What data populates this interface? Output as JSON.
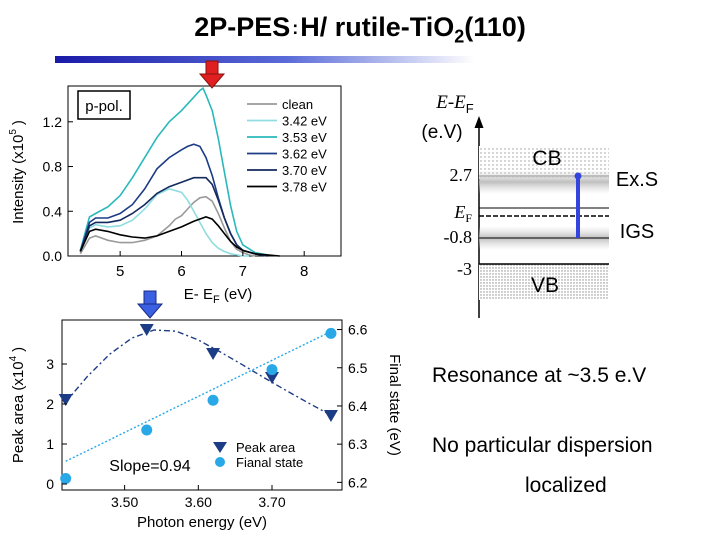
{
  "slide": {
    "title_main": "2P-PES",
    "title_mid": "H/ rutile-TiO",
    "title_sub": "2",
    "title_end": "(110)"
  },
  "colors": {
    "title_bar_dark": "#1a1aa8",
    "title_bar_light": "#5a6bd8",
    "arrow": "#e02020",
    "arrow_blue": "#3a5fe0",
    "cbm_line": "#3344dd"
  },
  "chart_data": [
    {
      "type": "line",
      "panel_label": "p-pol.",
      "xlabel": "E- E",
      "xlabel_sub": "F",
      "xlabel_unit": " (eV)",
      "ylabel": "Intensity (x10",
      "ylabel_sup": "5",
      "ylabel_end": ")",
      "xlim": [
        4.15,
        8.6
      ],
      "ylim": [
        0.0,
        1.52
      ],
      "xticks": [
        5,
        6,
        7,
        8
      ],
      "xtick_labels": [
        "5",
        "6",
        "7",
        "8"
      ],
      "yticks": [
        0.0,
        0.4,
        0.8,
        1.2
      ],
      "ytick_labels": [
        "0.0",
        "0.4",
        "0.8",
        "1.2"
      ],
      "legend_position": "top-right",
      "series": [
        {
          "name": "clean",
          "color": "#9a9a9a",
          "x": [
            4.35,
            4.5,
            4.6,
            4.8,
            5.0,
            5.2,
            5.4,
            5.6,
            5.8,
            5.9,
            6.0,
            6.1,
            6.2,
            6.3,
            6.4,
            6.5,
            6.6,
            6.7,
            6.8,
            6.9,
            7.0,
            7.1,
            7.2
          ],
          "y": [
            0.02,
            0.16,
            0.18,
            0.14,
            0.12,
            0.12,
            0.14,
            0.18,
            0.27,
            0.33,
            0.36,
            0.42,
            0.48,
            0.52,
            0.53,
            0.49,
            0.38,
            0.25,
            0.13,
            0.06,
            0.03,
            0.01,
            0.0
          ]
        },
        {
          "name": "3.42 eV",
          "color": "#8fdde0",
          "x": [
            4.35,
            4.5,
            4.6,
            4.8,
            5.0,
            5.2,
            5.4,
            5.6,
            5.8,
            6.0,
            6.1,
            6.2,
            6.3,
            6.4,
            6.5,
            6.6,
            6.7,
            6.8,
            6.9,
            7.0,
            7.1
          ],
          "y": [
            0.05,
            0.25,
            0.28,
            0.26,
            0.27,
            0.32,
            0.42,
            0.55,
            0.6,
            0.57,
            0.5,
            0.4,
            0.3,
            0.2,
            0.12,
            0.07,
            0.04,
            0.02,
            0.01,
            0.0,
            0.0
          ]
        },
        {
          "name": "3.53 eV",
          "color": "#2ab8ba",
          "x": [
            4.35,
            4.5,
            4.6,
            4.8,
            5.0,
            5.2,
            5.4,
            5.6,
            5.8,
            6.0,
            6.1,
            6.2,
            6.3,
            6.35,
            6.4,
            6.5,
            6.6,
            6.7,
            6.8,
            6.9,
            7.0,
            7.2,
            7.4
          ],
          "y": [
            0.05,
            0.35,
            0.38,
            0.44,
            0.54,
            0.7,
            0.88,
            1.06,
            1.2,
            1.3,
            1.36,
            1.42,
            1.48,
            1.5,
            1.44,
            1.3,
            1.05,
            0.75,
            0.45,
            0.22,
            0.1,
            0.03,
            0.01
          ]
        },
        {
          "name": "3.62 eV",
          "color": "#1d3c86",
          "x": [
            4.35,
            4.5,
            4.6,
            4.8,
            5.0,
            5.2,
            5.4,
            5.6,
            5.8,
            6.0,
            6.1,
            6.2,
            6.3,
            6.4,
            6.5,
            6.6,
            6.7,
            6.8,
            6.9,
            7.0,
            7.2,
            7.4
          ],
          "y": [
            0.04,
            0.3,
            0.34,
            0.34,
            0.38,
            0.46,
            0.6,
            0.78,
            0.88,
            0.95,
            0.98,
            1.0,
            0.98,
            0.88,
            0.72,
            0.52,
            0.34,
            0.2,
            0.1,
            0.05,
            0.02,
            0.0
          ]
        },
        {
          "name": "3.70 eV",
          "color": "#142a5e",
          "x": [
            4.35,
            4.5,
            4.6,
            4.8,
            5.0,
            5.2,
            5.4,
            5.6,
            5.8,
            6.0,
            6.2,
            6.4,
            6.5,
            6.6,
            6.7,
            6.8,
            6.9,
            7.0,
            7.2,
            7.4
          ],
          "y": [
            0.04,
            0.27,
            0.3,
            0.3,
            0.32,
            0.38,
            0.46,
            0.56,
            0.62,
            0.66,
            0.7,
            0.7,
            0.64,
            0.5,
            0.34,
            0.2,
            0.1,
            0.05,
            0.02,
            0.0
          ]
        },
        {
          "name": "3.78 eV",
          "color": "#000000",
          "x": [
            4.35,
            4.5,
            4.6,
            4.8,
            5.0,
            5.2,
            5.4,
            5.6,
            5.8,
            6.0,
            6.2,
            6.4,
            6.5,
            6.6,
            6.7,
            6.8,
            6.9,
            7.0,
            7.2,
            7.4,
            7.6
          ],
          "y": [
            0.04,
            0.22,
            0.24,
            0.22,
            0.19,
            0.17,
            0.16,
            0.18,
            0.22,
            0.26,
            0.31,
            0.35,
            0.33,
            0.27,
            0.2,
            0.13,
            0.08,
            0.05,
            0.02,
            0.01,
            0.0
          ]
        }
      ]
    },
    {
      "type": "scatter",
      "xlabel": "Photon energy (eV)",
      "ylabel": "Peak area (x10",
      "ylabel_sup": "4",
      "ylabel_end": ")",
      "y2label": "Final state (eV)",
      "xlim": [
        3.415,
        3.795
      ],
      "ylim": [
        -0.15,
        4.1
      ],
      "y2lim": [
        6.18,
        6.625
      ],
      "xticks": [
        3.5,
        3.6,
        3.7
      ],
      "xtick_labels": [
        "3.50",
        "3.60",
        "3.70"
      ],
      "yticks": [
        0,
        1,
        2,
        3
      ],
      "ytick_labels": [
        "0",
        "1",
        "2",
        "3"
      ],
      "y2ticks": [
        6.2,
        6.3,
        6.4,
        6.5,
        6.6
      ],
      "y2tick_labels": [
        "6.2",
        "6.3",
        "6.4",
        "6.5",
        "6.6"
      ],
      "annotation": "Slope=0.94",
      "legend_position": "bottom-right",
      "series": [
        {
          "name": "Peak area",
          "axis": "left",
          "marker": "triangle-down",
          "color": "#1d3c86",
          "x": [
            3.42,
            3.53,
            3.62,
            3.7,
            3.78
          ],
          "y": [
            2.1,
            3.85,
            3.25,
            2.65,
            1.7
          ],
          "fit_x": [
            3.42,
            3.45,
            3.48,
            3.51,
            3.54,
            3.57,
            3.6,
            3.63,
            3.66,
            3.69,
            3.72,
            3.75,
            3.78
          ],
          "fit_y": [
            2.05,
            2.7,
            3.25,
            3.65,
            3.85,
            3.82,
            3.6,
            3.3,
            2.98,
            2.65,
            2.33,
            2.02,
            1.72
          ]
        },
        {
          "name": "Fianal state",
          "axis": "right",
          "marker": "circle",
          "color": "#29a8e8",
          "x": [
            3.42,
            3.53,
            3.62,
            3.7,
            3.78
          ],
          "y": [
            6.21,
            6.337,
            6.415,
            6.495,
            6.59
          ],
          "fit_x": [
            3.42,
            3.78
          ],
          "fit_y": [
            6.255,
            6.595
          ]
        }
      ]
    }
  ],
  "band_diagram": {
    "axis_title_a": "E",
    "axis_title_b": "-E",
    "axis_title_sub": "F",
    "axis_unit": "(e.V)",
    "levels": [
      {
        "label": "2.7",
        "value": 2.7
      },
      {
        "label": "E",
        "label_sub": "F",
        "value": 0.0
      },
      {
        "label": "-0.8",
        "value": -0.8
      },
      {
        "label": "-3",
        "value": -3.0
      }
    ],
    "bands": {
      "cb": "CB",
      "vb": "VB",
      "exs": "Ex.S",
      "igs": "IGS"
    }
  },
  "notes": {
    "resonance": "Resonance at ~3.5 e.V",
    "dispersion": "No particular dispersion",
    "localized": "localized"
  }
}
